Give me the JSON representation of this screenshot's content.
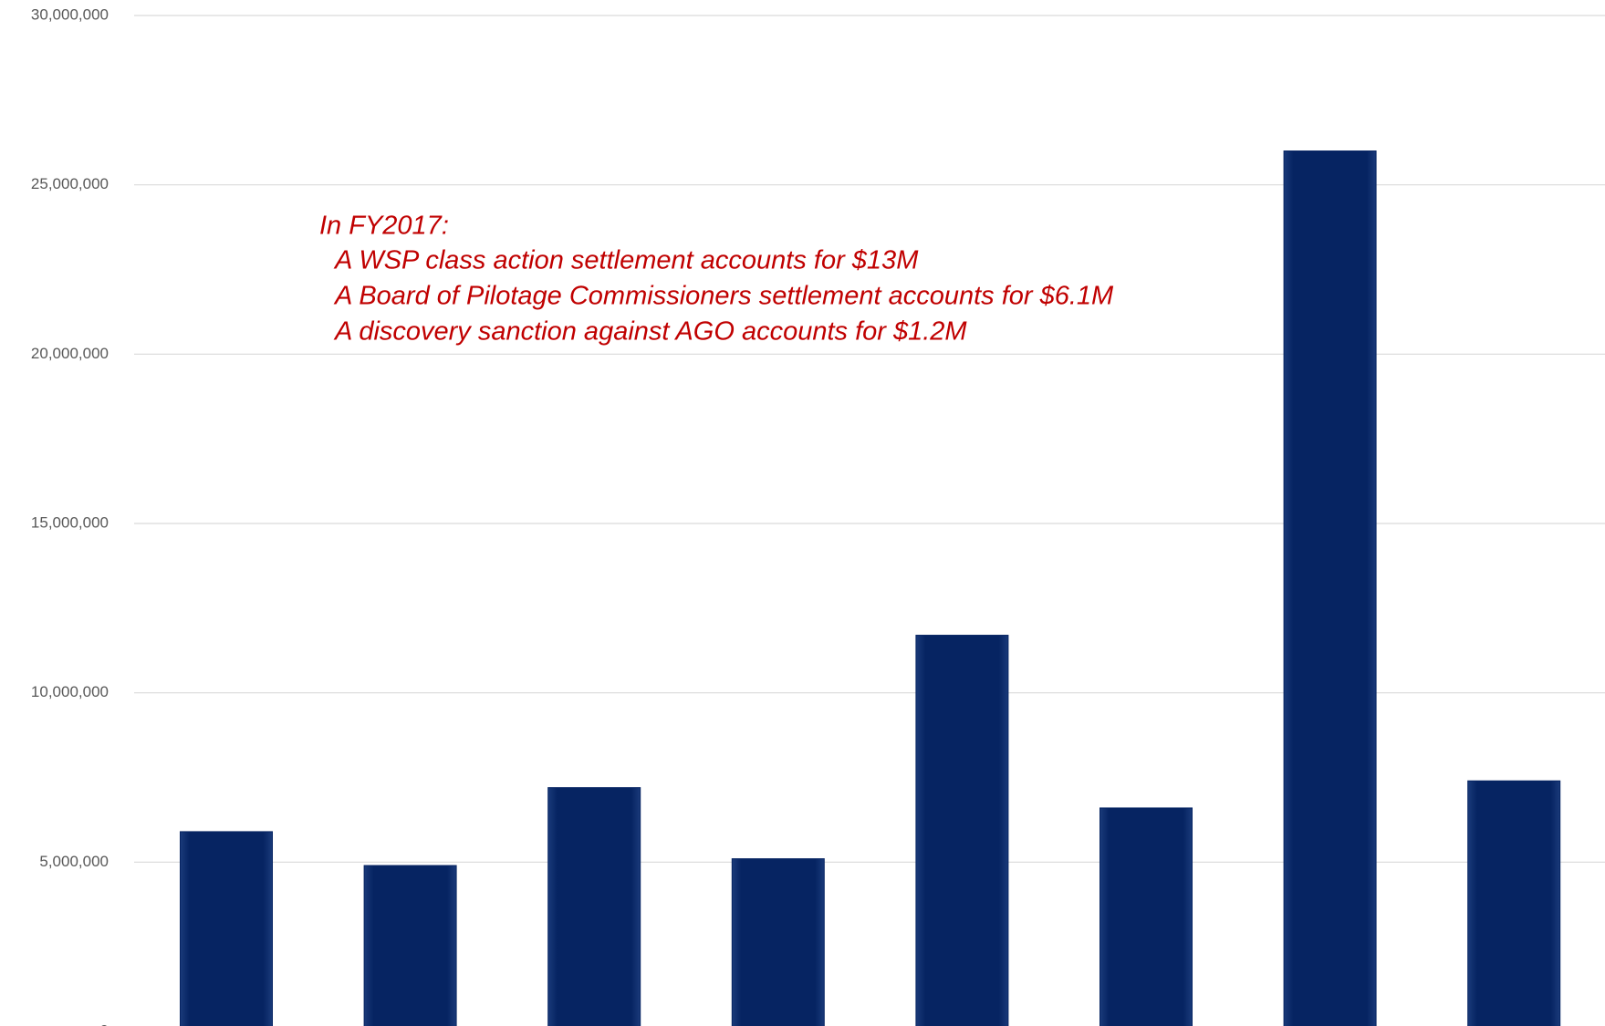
{
  "chart_data": {
    "type": "bar",
    "categories": [
      null,
      null,
      null,
      null,
      null,
      null,
      null,
      null
    ],
    "values": [
      5900000,
      4900000,
      7200000,
      5100000,
      11700000,
      6600000,
      26000000,
      7400000
    ],
    "color": "#062462",
    "ylim": [
      0,
      30000000
    ],
    "yticks": [
      0,
      {
        "value": 5000000,
        "label": "5,000,000"
      },
      {
        "value": 10000000,
        "label": "10,000,000"
      },
      {
        "value": 15000000,
        "label": "15,000,000"
      },
      {
        "value": 20000000,
        "label": "20,000,000"
      },
      {
        "value": 25000000,
        "label": "25,000,000"
      },
      {
        "value": 30000000,
        "label": "30,000,000"
      }
    ],
    "grid": true,
    "annotation": [
      "In FY2017:",
      "A WSP class action settlement accounts for $13M",
      "A Board of Pilotage Commissioners settlement accounts for $6.1M",
      "A discovery sanction against AGO accounts for $1.2M"
    ]
  }
}
